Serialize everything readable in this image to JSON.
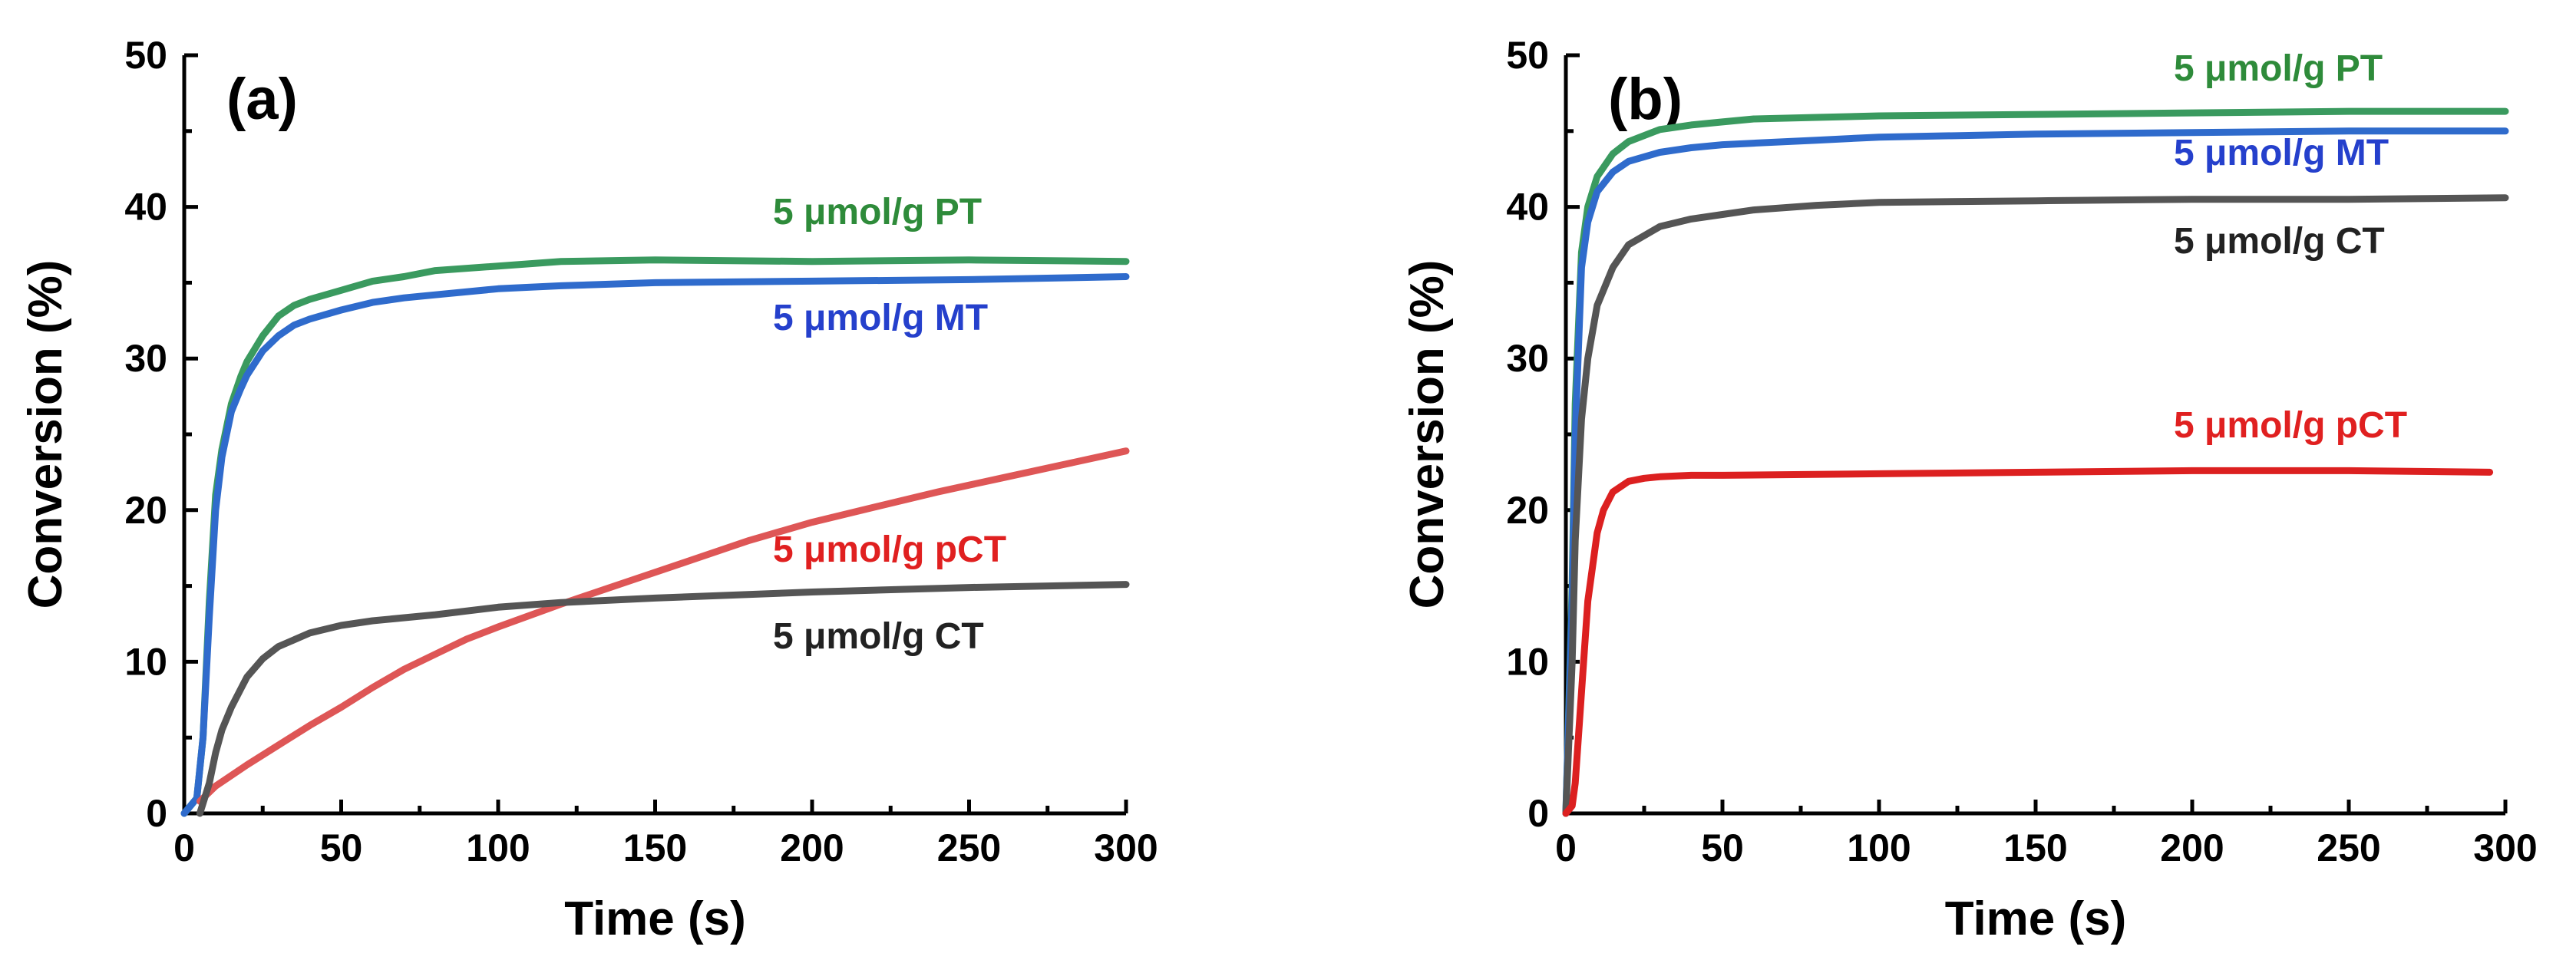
{
  "chart_data": [
    {
      "type": "line",
      "panel_label": "(a)",
      "xlabel": "Time (s)",
      "ylabel": "Conversion (%)",
      "xlim": [
        0,
        300
      ],
      "ylim": [
        0,
        50
      ],
      "xticks": [
        0,
        50,
        100,
        150,
        200,
        250,
        300
      ],
      "yticks": [
        0,
        10,
        20,
        30,
        40,
        50
      ],
      "grid": false,
      "series": [
        {
          "name": "5 μmol/g PT",
          "color": "#3a9a5f",
          "label_color": "#2e8b3a",
          "x": [
            0,
            4,
            6,
            8,
            10,
            12,
            15,
            18,
            20,
            25,
            30,
            35,
            40,
            50,
            60,
            70,
            80,
            100,
            120,
            150,
            200,
            250,
            300
          ],
          "y": [
            0,
            1,
            5,
            14,
            21,
            24,
            27,
            28.8,
            29.8,
            31.5,
            32.8,
            33.5,
            33.9,
            34.5,
            35.1,
            35.4,
            35.8,
            36.1,
            36.4,
            36.5,
            36.4,
            36.5,
            36.4
          ]
        },
        {
          "name": "5 μmol/g MT",
          "color": "#2f6bcc",
          "label_color": "#2540cc",
          "x": [
            0,
            4,
            6,
            8,
            10,
            12,
            15,
            18,
            20,
            25,
            30,
            35,
            40,
            50,
            60,
            70,
            80,
            100,
            120,
            150,
            200,
            250,
            300
          ],
          "y": [
            0,
            1,
            5,
            13,
            20,
            23.5,
            26.5,
            28,
            28.9,
            30.5,
            31.5,
            32.2,
            32.6,
            33.2,
            33.7,
            34,
            34.2,
            34.6,
            34.8,
            35,
            35.1,
            35.2,
            35.4
          ]
        },
        {
          "name": "5 μmol/g pCT",
          "color": "#de5656",
          "label_color": "#e02020",
          "x": [
            5,
            10,
            20,
            30,
            40,
            50,
            60,
            70,
            80,
            90,
            100,
            120,
            140,
            160,
            180,
            200,
            220,
            240,
            260,
            280,
            300
          ],
          "y": [
            0.8,
            1.8,
            3.2,
            4.5,
            5.8,
            7,
            8.3,
            9.5,
            10.5,
            11.5,
            12.3,
            13.8,
            15.2,
            16.6,
            18,
            19.2,
            20.2,
            21.2,
            22.1,
            23,
            23.9
          ]
        },
        {
          "name": "5 μmol/g CT",
          "color": "#555555",
          "label_color": "#222222",
          "x": [
            5,
            8,
            10,
            12,
            15,
            18,
            20,
            25,
            30,
            40,
            50,
            60,
            80,
            100,
            120,
            150,
            200,
            250,
            300
          ],
          "y": [
            0,
            2,
            4,
            5.5,
            7,
            8.2,
            9,
            10.2,
            11,
            11.9,
            12.4,
            12.7,
            13.1,
            13.6,
            13.9,
            14.2,
            14.6,
            14.9,
            15.1
          ]
        }
      ]
    },
    {
      "type": "line",
      "panel_label": "(b)",
      "xlabel": "Time (s)",
      "ylabel": "Conversion (%)",
      "xlim": [
        0,
        300
      ],
      "ylim": [
        0,
        50
      ],
      "xticks": [
        0,
        50,
        100,
        150,
        200,
        250,
        300
      ],
      "yticks": [
        0,
        10,
        20,
        30,
        40,
        50
      ],
      "grid": false,
      "series": [
        {
          "name": "5 μmol/g PT",
          "color": "#3a9a5f",
          "label_color": "#2e8b3a",
          "x": [
            0,
            2,
            3,
            5,
            7,
            10,
            15,
            20,
            30,
            40,
            50,
            60,
            80,
            100,
            150,
            200,
            250,
            300
          ],
          "y": [
            0,
            15,
            27,
            37,
            40,
            42,
            43.5,
            44.3,
            45.1,
            45.4,
            45.6,
            45.8,
            45.9,
            46,
            46.1,
            46.2,
            46.3,
            46.3
          ]
        },
        {
          "name": "5 μmol/g MT",
          "color": "#2f6bcc",
          "label_color": "#2540cc",
          "x": [
            0,
            2,
            3,
            5,
            7,
            10,
            15,
            20,
            30,
            40,
            50,
            60,
            80,
            100,
            150,
            200,
            250,
            300
          ],
          "y": [
            0,
            14,
            25,
            36,
            39,
            41,
            42.3,
            43,
            43.6,
            43.9,
            44.1,
            44.2,
            44.4,
            44.6,
            44.8,
            44.9,
            45,
            45
          ]
        },
        {
          "name": "5 μmol/g CT",
          "color": "#555555",
          "label_color": "#222222",
          "x": [
            0,
            2,
            3,
            5,
            7,
            10,
            15,
            20,
            30,
            40,
            50,
            60,
            80,
            100,
            150,
            200,
            250,
            300
          ],
          "y": [
            0,
            10,
            18,
            26,
            30,
            33.5,
            36,
            37.5,
            38.7,
            39.2,
            39.5,
            39.8,
            40.1,
            40.3,
            40.4,
            40.5,
            40.5,
            40.6
          ]
        },
        {
          "name": "5 μmol/g pCT",
          "color": "#dc2020",
          "label_color": "#e02020",
          "x": [
            0,
            2,
            3,
            5,
            7,
            10,
            12,
            15,
            20,
            25,
            30,
            40,
            50,
            100,
            150,
            200,
            250,
            295
          ],
          "y": [
            0,
            0.5,
            2,
            8,
            14,
            18.5,
            20,
            21.2,
            21.9,
            22.1,
            22.2,
            22.3,
            22.3,
            22.4,
            22.5,
            22.6,
            22.6,
            22.5
          ]
        }
      ]
    }
  ]
}
